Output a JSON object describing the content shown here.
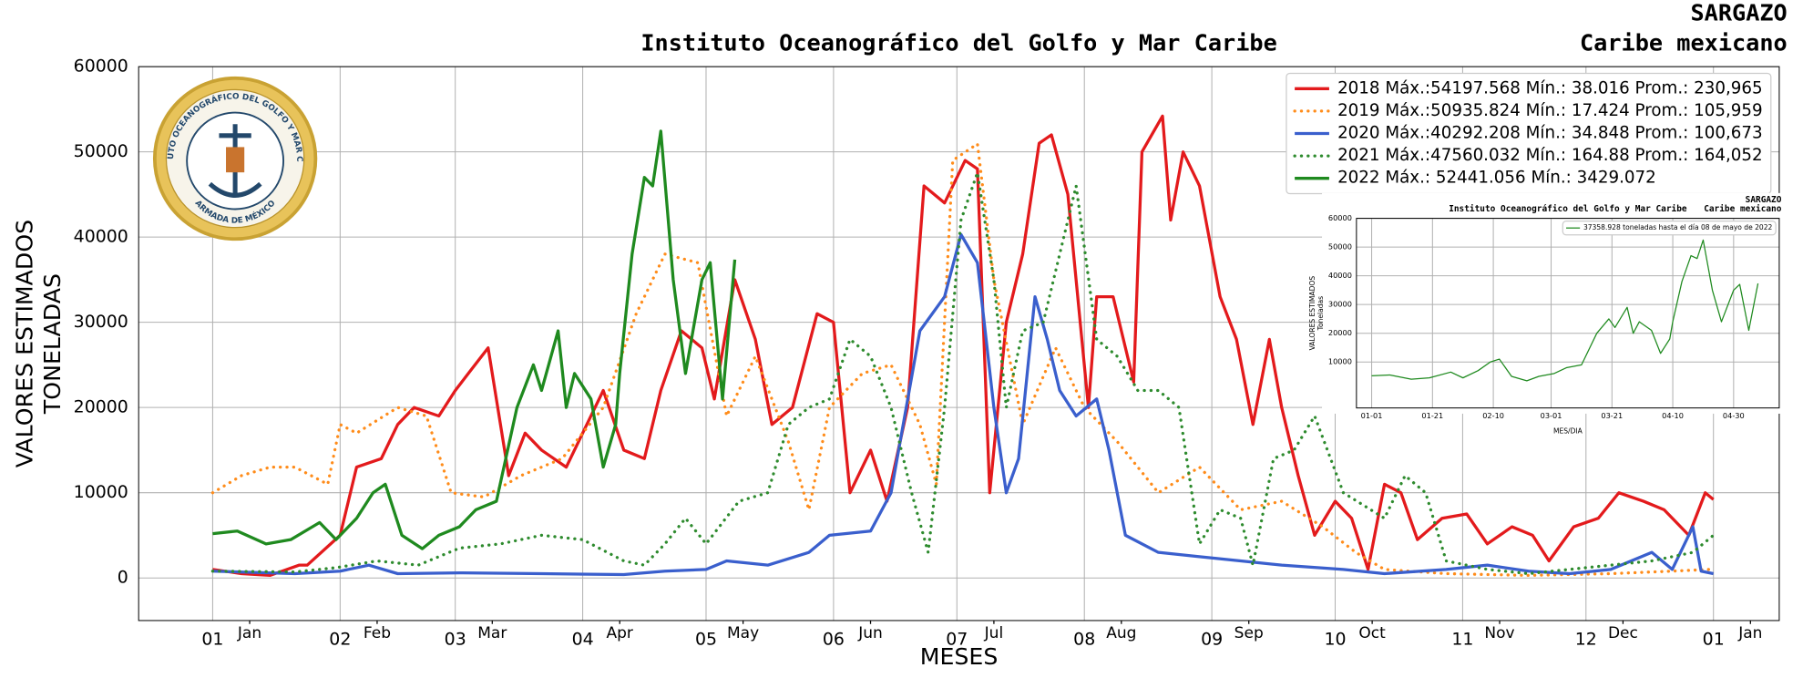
{
  "chart_data": [
    {
      "type": "line",
      "title": "Instituto Oceanográfico del Golfo y Mar Caribe",
      "corner_title": [
        "SARGAZO",
        "Caribe mexicano"
      ],
      "xlabel": "MESES",
      "ylabel": [
        "VALORES ESTIMADOS",
        "TONELADAS"
      ],
      "xlim": [
        -18,
        381
      ],
      "ylim": [
        -5000,
        60000
      ],
      "xticks": [
        {
          "value": 0,
          "label": "01"
        },
        {
          "value": 31,
          "label": "02"
        },
        {
          "value": 59,
          "label": "03"
        },
        {
          "value": 90,
          "label": "04"
        },
        {
          "value": 120,
          "label": "05"
        },
        {
          "value": 151,
          "label": "06"
        },
        {
          "value": 181,
          "label": "07"
        },
        {
          "value": 212,
          "label": "08"
        },
        {
          "value": 243,
          "label": "09"
        },
        {
          "value": 273,
          "label": "10"
        },
        {
          "value": 304,
          "label": "11"
        },
        {
          "value": 334,
          "label": "12"
        },
        {
          "value": 365,
          "label": "01"
        }
      ],
      "xminor": [
        {
          "value": 9,
          "label": "Jan"
        },
        {
          "value": 40,
          "label": "Feb"
        },
        {
          "value": 68,
          "label": "Mar"
        },
        {
          "value": 99,
          "label": "Apr"
        },
        {
          "value": 129,
          "label": "May"
        },
        {
          "value": 160,
          "label": "Jun"
        },
        {
          "value": 190,
          "label": "Jul"
        },
        {
          "value": 221,
          "label": "Aug"
        },
        {
          "value": 252,
          "label": "Sep"
        },
        {
          "value": 282,
          "label": "Oct"
        },
        {
          "value": 313,
          "label": "Nov"
        },
        {
          "value": 343,
          "label": "Dec"
        },
        {
          "value": 374,
          "label": "Jan"
        }
      ],
      "yticks": [
        0,
        10000,
        20000,
        30000,
        40000,
        50000,
        60000
      ],
      "grid": true,
      "legend": "upper right",
      "series": [
        {
          "name": "2018 Máx.:54197.568 Mín.: 38.016 Prom.: 230,965",
          "color": "#e31a1c",
          "linestyle": "solid",
          "x": [
            0,
            7,
            14,
            21,
            23,
            31,
            35,
            41,
            45,
            49,
            55,
            59,
            63,
            67,
            72,
            76,
            80,
            86,
            91,
            95,
            100,
            105,
            109,
            114,
            119,
            122,
            127,
            132,
            136,
            141,
            147,
            151,
            155,
            160,
            164,
            169,
            173,
            178,
            183,
            186,
            189,
            193,
            197,
            201,
            204,
            208,
            213,
            215,
            219,
            224,
            226,
            231,
            233,
            236,
            240,
            245,
            249,
            253,
            257,
            260,
            264,
            268,
            273,
            277,
            281,
            285,
            289,
            293,
            299,
            305,
            310,
            316,
            321,
            325,
            331,
            337,
            342,
            348,
            353,
            359,
            363,
            365
          ],
          "values": [
            1000,
            500,
            300,
            1500,
            1500,
            5000,
            13000,
            14000,
            18000,
            20000,
            19000,
            22000,
            24500,
            27000,
            12000,
            17000,
            15000,
            13000,
            18000,
            22000,
            15000,
            14000,
            22000,
            29000,
            27000,
            21000,
            35000,
            28000,
            18000,
            20000,
            31000,
            30000,
            10000,
            15000,
            9000,
            20000,
            46000,
            44000,
            49000,
            48000,
            10000,
            30000,
            38000,
            51000,
            52000,
            45000,
            20000,
            33000,
            33000,
            23000,
            50000,
            54198,
            42000,
            50000,
            46000,
            33000,
            28000,
            18000,
            28000,
            20000,
            12000,
            5000,
            9000,
            7000,
            1000,
            11000,
            10000,
            4500,
            7000,
            7500,
            4000,
            6000,
            5000,
            2000,
            6000,
            7000,
            10000,
            9000,
            8000,
            5000,
            10000,
            9200
          ]
        },
        {
          "name": "2019 Máx.:50935.824 Mín.: 17.424 Prom.: 105,959",
          "color": "#ff8c1a",
          "linestyle": "dotted",
          "x": [
            0,
            7,
            14,
            20,
            28,
            31,
            35,
            45,
            52,
            58,
            66,
            75,
            85,
            95,
            103,
            110,
            118,
            125,
            132,
            140,
            145,
            150,
            158,
            165,
            172,
            176,
            180,
            186,
            190,
            197,
            205,
            212,
            220,
            230,
            240,
            250,
            260,
            270,
            278,
            285,
            300,
            320,
            340,
            355,
            364
          ],
          "values": [
            10000,
            12000,
            13000,
            13000,
            11000,
            18000,
            17000,
            20000,
            19000,
            10000,
            9500,
            12000,
            14000,
            20000,
            31000,
            38000,
            37000,
            19000,
            26000,
            16000,
            8000,
            20000,
            24000,
            25000,
            18000,
            11000,
            49000,
            50936,
            35000,
            18000,
            27000,
            20000,
            16000,
            10000,
            13000,
            8000,
            9000,
            6000,
            3000,
            1000,
            500,
            300,
            500,
            800,
            1000
          ]
        },
        {
          "name": "2020 Máx.:40292.208 Mín.: 34.848 Prom.: 100,673",
          "color": "#3a5fcd",
          "linestyle": "solid",
          "x": [
            0,
            20,
            31,
            38,
            45,
            60,
            80,
            100,
            110,
            120,
            125,
            135,
            145,
            150,
            160,
            165,
            172,
            178,
            182,
            186,
            190,
            193,
            196,
            200,
            203,
            206,
            210,
            215,
            218,
            222,
            230,
            240,
            250,
            260,
            275,
            285,
            300,
            310,
            320,
            330,
            340,
            350,
            355,
            360,
            362,
            365
          ],
          "values": [
            800,
            500,
            800,
            1500,
            500,
            600,
            500,
            400,
            800,
            1000,
            2000,
            1500,
            3000,
            5000,
            5500,
            10000,
            29000,
            33000,
            40292,
            37000,
            20000,
            10000,
            14000,
            33000,
            28000,
            22000,
            19000,
            21000,
            15000,
            5000,
            3000,
            2500,
            2000,
            1500,
            1000,
            500,
            1000,
            1500,
            800,
            500,
            1000,
            3000,
            1000,
            6000,
            800,
            500
          ]
        },
        {
          "name": "2021 Máx.:47560.032 Mín.: 164.88 Prom.: 164,052",
          "color": "#2e8b2e",
          "linestyle": "dotted",
          "x": [
            0,
            20,
            30,
            40,
            50,
            60,
            70,
            80,
            90,
            100,
            105,
            110,
            115,
            120,
            128,
            135,
            140,
            145,
            150,
            155,
            160,
            165,
            170,
            174,
            178,
            182,
            186,
            190,
            193,
            197,
            202,
            210,
            215,
            220,
            225,
            230,
            235,
            240,
            245,
            250,
            253,
            258,
            263,
            268,
            275,
            285,
            290,
            295,
            300,
            310,
            320,
            330,
            340,
            350,
            360,
            365
          ],
          "values": [
            800,
            700,
            1200,
            2000,
            1500,
            3500,
            4000,
            5000,
            4500,
            2000,
            1500,
            4000,
            7000,
            4000,
            9000,
            10000,
            18000,
            20000,
            21000,
            28000,
            26000,
            20000,
            10000,
            3000,
            20000,
            42000,
            47560,
            35000,
            20000,
            29000,
            30000,
            46000,
            28000,
            26000,
            22000,
            22000,
            20000,
            4000,
            8000,
            7000,
            1500,
            14000,
            15000,
            19000,
            10000,
            7000,
            12000,
            10000,
            2000,
            1000,
            500,
            1000,
            1500,
            2000,
            3000,
            5000
          ]
        },
        {
          "name": "2022 Máx.: 52441.056  Mín.: 3429.072",
          "color": "#1f8a1f",
          "linestyle": "solid",
          "x": [
            0,
            6,
            13,
            19,
            26,
            30,
            35,
            39,
            42,
            46,
            51,
            55,
            60,
            64,
            69,
            74,
            78,
            80,
            84,
            86,
            88,
            92,
            95,
            98,
            99,
            102,
            105,
            107,
            109,
            112,
            115,
            119,
            121,
            124,
            127
          ],
          "values": [
            5200,
            5500,
            4000,
            4500,
            6500,
            4500,
            7000,
            10000,
            11000,
            5000,
            3429,
            5000,
            6000,
            8000,
            9000,
            20000,
            25000,
            22000,
            29000,
            20000,
            24000,
            21000,
            13000,
            18000,
            24000,
            38000,
            47000,
            46000,
            52441,
            35000,
            24000,
            35000,
            37000,
            21000,
            37358.928
          ]
        }
      ]
    },
    {
      "type": "line",
      "title": "Instituto Oceanográfico del Golfo y Mar Caribe",
      "corner_title": [
        "SARGAZO",
        "Caribe mexicano"
      ],
      "xlabel": "MES/DIA",
      "ylabel": [
        "VALORES ESTIMADOS",
        "Toneladas"
      ],
      "xlim": [
        -5,
        134
      ],
      "ylim": [
        -6000,
        60000
      ],
      "xticks": [
        {
          "value": 0,
          "label": "01-01"
        },
        {
          "value": 20,
          "label": "01-21"
        },
        {
          "value": 40,
          "label": "02-10"
        },
        {
          "value": 59,
          "label": "03-01"
        },
        {
          "value": 79,
          "label": "03-21"
        },
        {
          "value": 99,
          "label": "04-10"
        },
        {
          "value": 119,
          "label": "04-30"
        }
      ],
      "yticks": [
        10000,
        20000,
        30000,
        40000,
        50000,
        60000
      ],
      "grid": true,
      "legend": "upper right",
      "series": [
        {
          "name": "37358.928 toneladas hasta el día 08 de mayo de 2022",
          "color": "#1f8a1f",
          "linestyle": "solid",
          "x": [
            0,
            6,
            13,
            19,
            26,
            30,
            35,
            39,
            42,
            46,
            51,
            55,
            60,
            64,
            69,
            74,
            78,
            80,
            84,
            86,
            88,
            92,
            95,
            98,
            99,
            102,
            105,
            107,
            109,
            112,
            115,
            119,
            121,
            124,
            127
          ],
          "values": [
            5200,
            5500,
            4000,
            4500,
            6500,
            4500,
            7000,
            10000,
            11000,
            5000,
            3429,
            5000,
            6000,
            8000,
            9000,
            20000,
            25000,
            22000,
            29000,
            20000,
            24000,
            21000,
            13000,
            18000,
            24000,
            38000,
            47000,
            46000,
            52441,
            35000,
            24000,
            35000,
            37000,
            21000,
            37358.928
          ]
        }
      ]
    }
  ],
  "logo": {
    "top": "INSTITUTO OCEANOGRÁFICO DEL GOLFO Y MAR CARIBE",
    "bottom": "ARMADA DE MÉXICO"
  }
}
